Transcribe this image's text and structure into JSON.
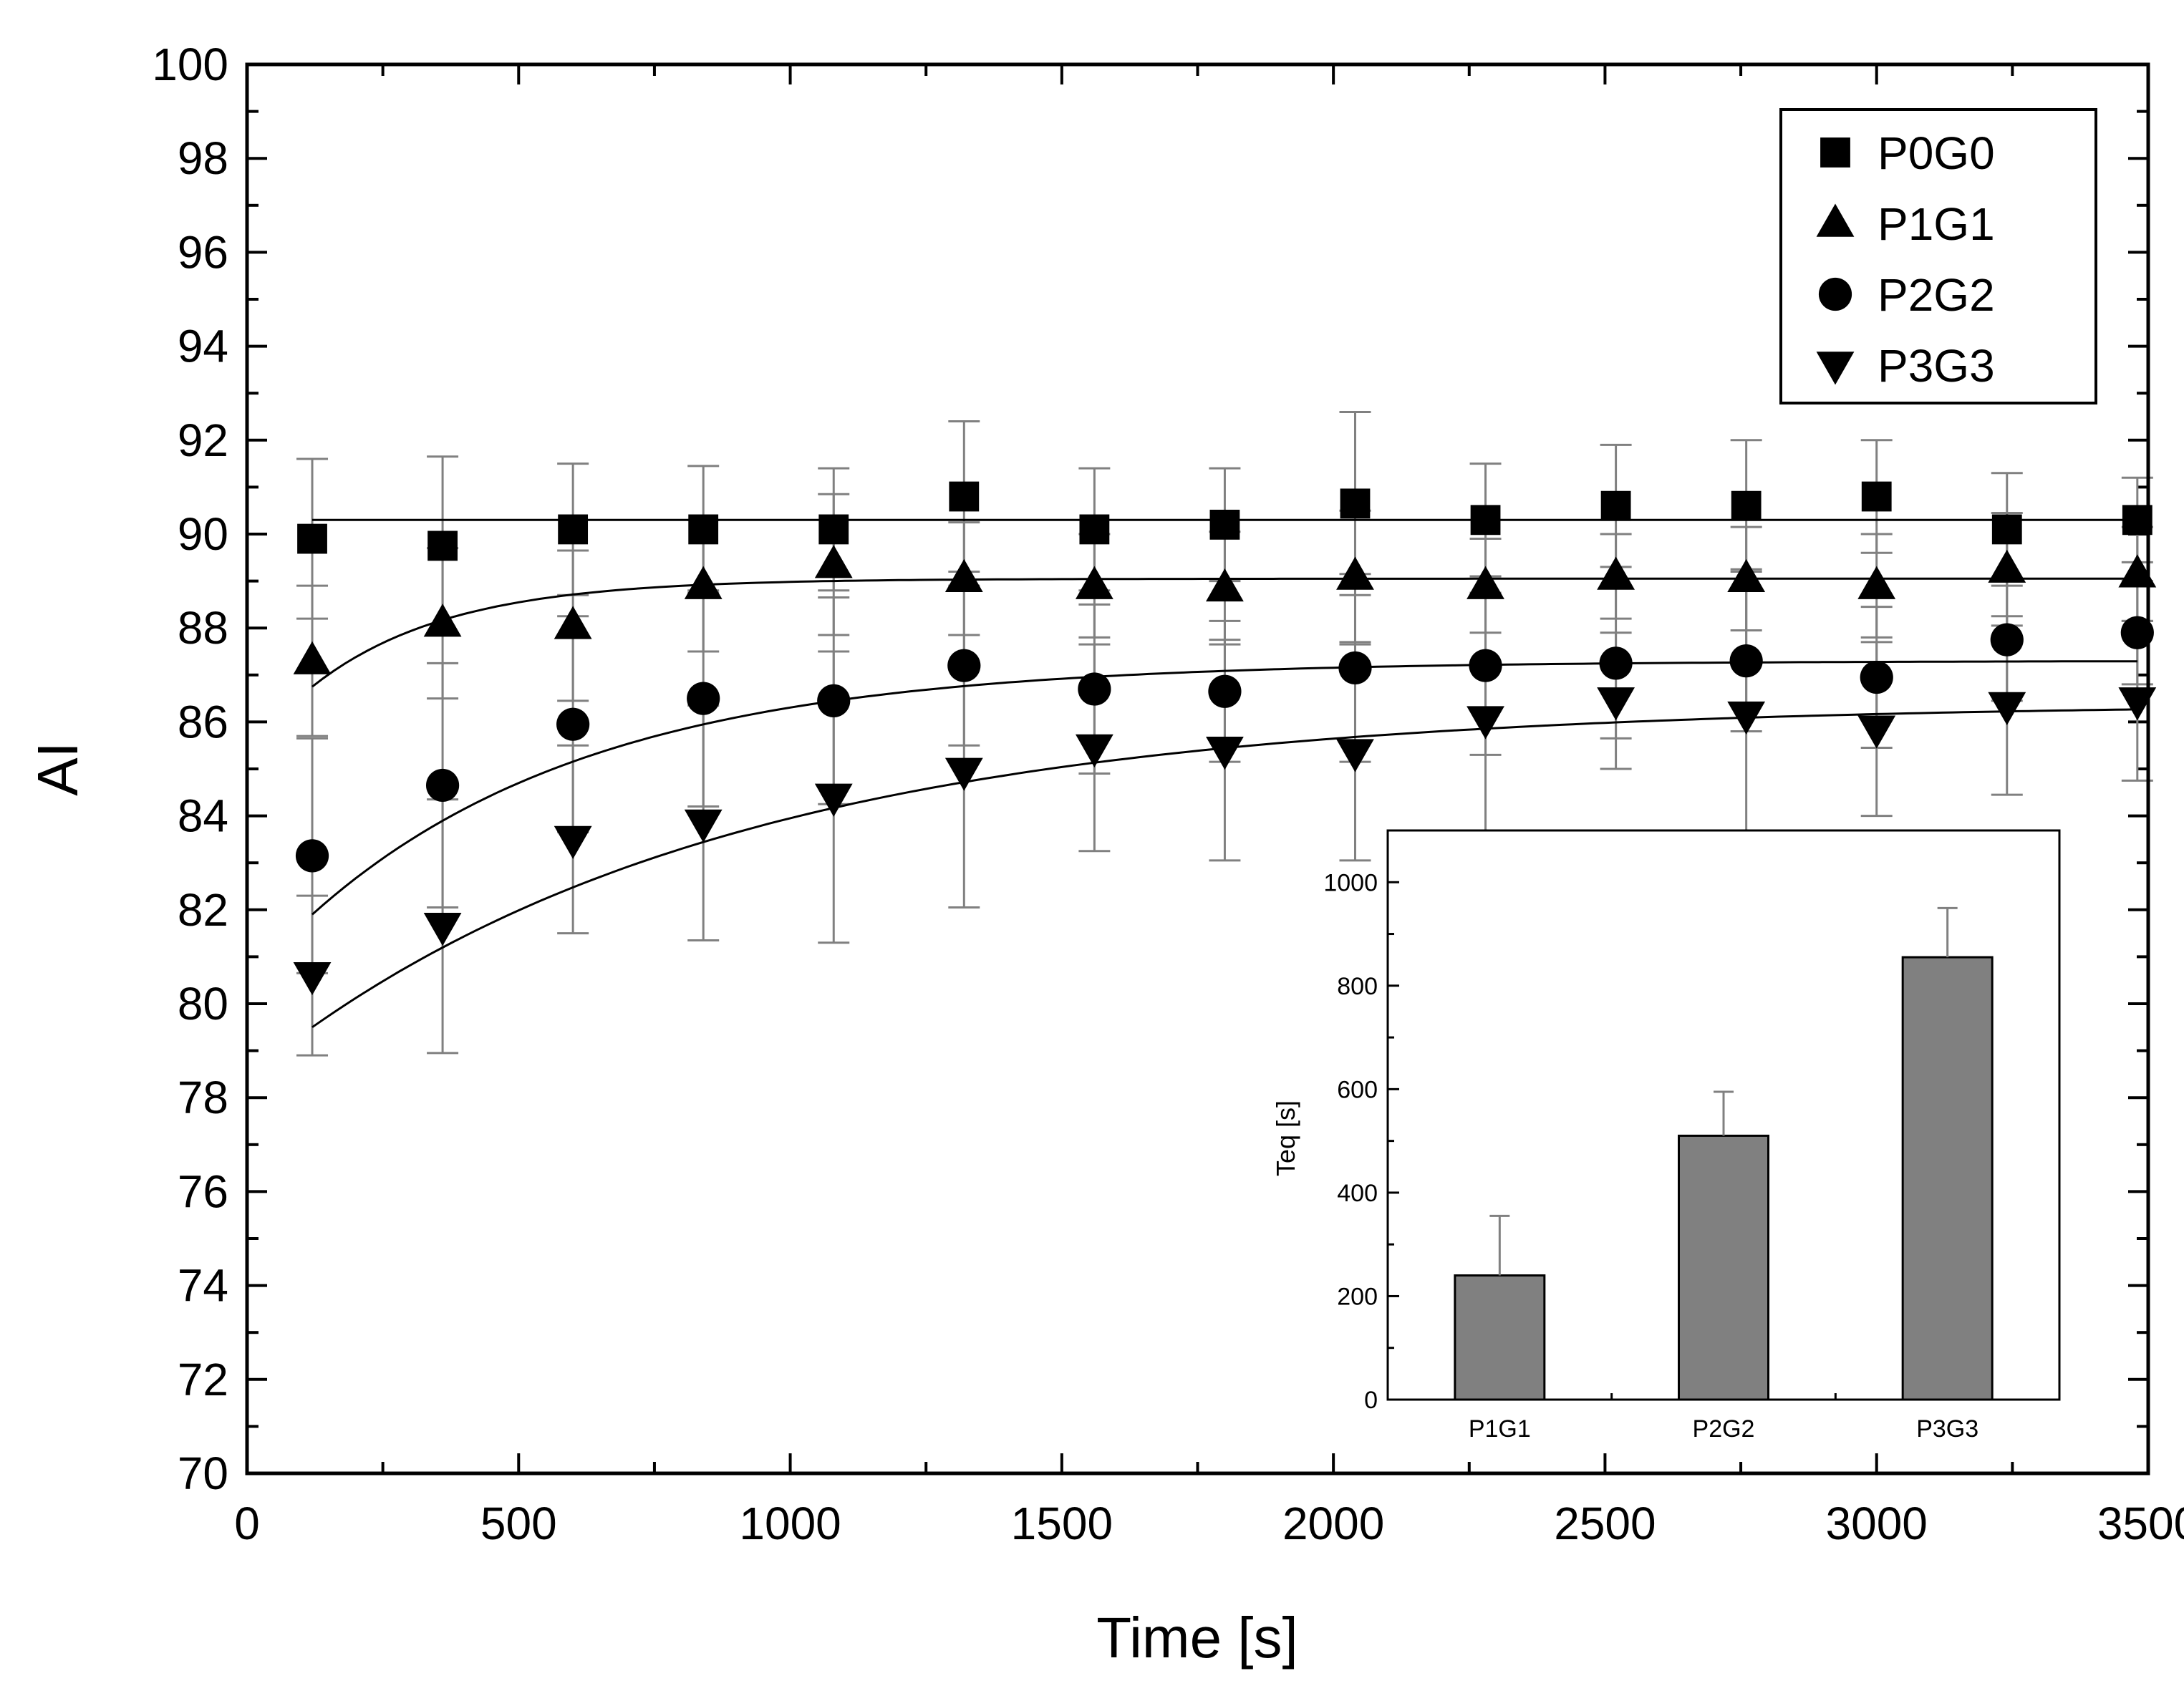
{
  "chart_data": [
    {
      "type": "scatter",
      "xlabel": "Time [s]",
      "ylabel": "AI",
      "xlim": [
        0,
        3500
      ],
      "ylim": [
        70,
        100
      ],
      "xticks": [
        0,
        500,
        1000,
        1500,
        2000,
        2500,
        3000,
        3500
      ],
      "yticks": [
        70,
        72,
        74,
        76,
        78,
        80,
        82,
        84,
        86,
        88,
        90,
        92,
        94,
        96,
        98,
        100
      ],
      "x": [
        120,
        360,
        600,
        840,
        1080,
        1320,
        1560,
        1800,
        2040,
        2280,
        2520,
        2760,
        3000,
        3240,
        3480
      ],
      "legend_position": "top-right",
      "series": [
        {
          "name": "P0G0",
          "marker": "square",
          "values": [
            89.9,
            89.75,
            90.1,
            90.1,
            90.1,
            90.8,
            90.1,
            90.2,
            90.65,
            90.3,
            90.6,
            90.6,
            90.8,
            90.1,
            90.3
          ],
          "errors": [
            1.7,
            1.9,
            1.4,
            1.35,
            1.3,
            1.6,
            1.3,
            1.2,
            1.95,
            1.2,
            1.3,
            1.4,
            1.2,
            1.2,
            0.9
          ],
          "fit": {
            "type": "constant",
            "asymptote": 90.3
          }
        },
        {
          "name": "P1G1",
          "marker": "triangle-up",
          "values": [
            87.3,
            88.1,
            88.05,
            88.9,
            89.35,
            89.05,
            88.9,
            88.85,
            89.1,
            88.9,
            89.1,
            89.05,
            88.9,
            89.25,
            89.15
          ],
          "errors": [
            1.6,
            1.6,
            1.6,
            1.4,
            1.5,
            1.2,
            1.1,
            1.2,
            1.4,
            1.0,
            0.9,
            1.1,
            1.1,
            1.2,
            1.0
          ],
          "fit": {
            "type": "exponential",
            "asymptote": 89.05,
            "amplitude": 2.3,
            "tau": 250
          }
        },
        {
          "name": "P2G2",
          "marker": "circle",
          "values": [
            83.15,
            84.65,
            85.95,
            86.5,
            86.45,
            87.2,
            86.7,
            86.65,
            87.15,
            87.2,
            87.25,
            87.3,
            86.95,
            87.75,
            87.9
          ],
          "errors": [
            2.5,
            2.6,
            2.3,
            2.3,
            2.2,
            1.7,
            1.8,
            1.5,
            2.0,
            1.9,
            1.6,
            1.5,
            1.5,
            1.3,
            1.1
          ],
          "fit": {
            "type": "exponential",
            "asymptote": 87.3,
            "amplitude": 5.4,
            "tau": 520
          }
        },
        {
          "name": "P3G3",
          "marker": "triangle-down",
          "values": [
            80.6,
            81.65,
            83.5,
            83.85,
            84.4,
            84.95,
            85.45,
            85.4,
            85.35,
            86.05,
            86.45,
            86.15,
            85.85,
            86.35,
            86.45
          ],
          "errors": [
            1.7,
            2.7,
            2.0,
            2.5,
            3.1,
            2.9,
            2.2,
            2.35,
            2.3,
            2.7,
            1.45,
            3.1,
            1.85,
            1.9,
            1.7
          ],
          "fit": {
            "type": "exponential",
            "asymptote": 86.4,
            "amplitude": 6.9,
            "tau": 850
          }
        }
      ]
    },
    {
      "type": "bar",
      "ylabel": "Teq [s]",
      "categories": [
        "P1G1",
        "P2G2",
        "P3G3"
      ],
      "values": [
        240,
        510,
        855
      ],
      "errors": [
        115,
        85,
        95
      ],
      "ylim": [
        0,
        1100
      ],
      "yticks": [
        0,
        200,
        400,
        600,
        800,
        1000
      ],
      "bar_color": "#808080",
      "legend_position": "none"
    }
  ]
}
